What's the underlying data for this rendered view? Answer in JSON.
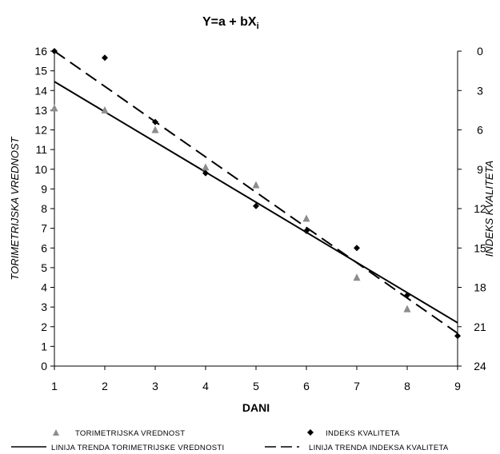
{
  "chart_data": {
    "type": "scatter",
    "title": "Y=a + bX",
    "title_subscript": "i",
    "xlabel": "DANI",
    "ylabel": "TORIMETRIJSKA VREDNOST",
    "y2label": "INDEKS KVALITETA",
    "xlim": [
      1,
      9
    ],
    "ylim": [
      0,
      16
    ],
    "y2lim": [
      0,
      24
    ],
    "y2_inverted": true,
    "x_ticks": [
      "1",
      "2",
      "3",
      "4",
      "5",
      "6",
      "7",
      "8",
      "9"
    ],
    "y_ticks": [
      "0",
      "1",
      "2",
      "3",
      "4",
      "5",
      "6",
      "7",
      "8",
      "9",
      "10",
      "11",
      "12",
      "13",
      "14",
      "15",
      "16"
    ],
    "y2_ticks": [
      "0",
      "3",
      "6",
      "9",
      "12",
      "15",
      "18",
      "21",
      "24"
    ],
    "grid": false,
    "legend_position": "bottom",
    "series": [
      {
        "name": "TORIMETRIJSKA VREDNOST",
        "axis": "left",
        "marker": "triangle",
        "color": "#8c8c8c",
        "x": [
          1,
          2,
          3,
          4,
          5,
          6,
          7,
          8
        ],
        "y": [
          13.1,
          13.0,
          12.0,
          10.1,
          9.2,
          7.5,
          4.5,
          2.9
        ]
      },
      {
        "name": "INDEKS KVALITETA",
        "axis": "right",
        "marker": "diamond",
        "color": "#000000",
        "x": [
          1,
          2,
          3,
          4,
          5,
          6,
          7,
          8,
          9
        ],
        "y": [
          0.0,
          0.5,
          5.4,
          9.3,
          11.8,
          13.7,
          15.0,
          18.6,
          21.7
        ]
      }
    ],
    "trendlines": [
      {
        "name": "LINIJA TRENDA TORIMETRIJSKE VREDNOSTI",
        "axis": "left",
        "style": "solid",
        "x": [
          1,
          9
        ],
        "y": [
          14.45,
          2.2
        ]
      },
      {
        "name": "LINIJA TRENDA INDEKSA KVALITETA",
        "axis": "right",
        "style": "dashed",
        "x": [
          1,
          9
        ],
        "y": [
          0.0,
          21.5
        ]
      }
    ]
  }
}
